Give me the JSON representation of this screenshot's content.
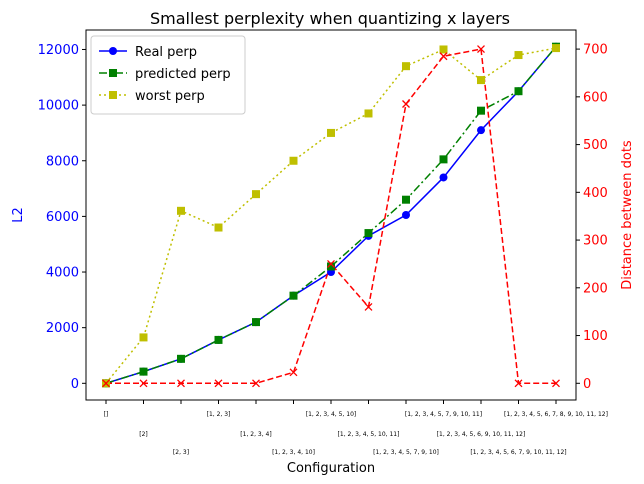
{
  "chart_data": {
    "type": "line",
    "title": "Smallest perplexity when quantizing x layers",
    "xlabel": "Configuration",
    "ylabel_left": "L2",
    "ylabel_right": "Distance between dots",
    "categories": [
      "[]",
      "[2]",
      "[2, 3]",
      "[1, 2, 3]",
      "[1, 2, 3, 4]",
      "[1, 2, 3, 4, 10]",
      "[1, 2, 3, 4, 5, 10]",
      "[1, 2, 3, 4, 5, 10, 11]",
      "[1, 2, 3, 4, 5, 7, 9, 10]",
      "[1, 2, 3, 4, 5, 7, 9, 10, 11]",
      "[1, 2, 3, 4, 5, 6, 9, 10, 11, 12]",
      "[1, 2, 3, 4, 5, 6, 7, 9, 10, 11, 12]",
      "[1, 2, 3, 4, 5, 6, 7, 8, 9, 10, 11, 12]"
    ],
    "ylim_left": [
      -600,
      12700
    ],
    "ylim_right": [
      -35,
      740
    ],
    "yticks_left": [
      0,
      2000,
      4000,
      6000,
      8000,
      10000,
      12000
    ],
    "yticks_right": [
      0,
      100,
      200,
      300,
      400,
      500,
      600,
      700
    ],
    "series": [
      {
        "name": "Real perp",
        "axis": "left",
        "color": "#0000ff",
        "style": "solid",
        "marker": "circle",
        "values": [
          0,
          420,
          880,
          1560,
          2200,
          3150,
          4000,
          5300,
          6050,
          7400,
          9100,
          10500,
          12100
        ]
      },
      {
        "name": "predicted perp",
        "axis": "left",
        "color": "#008000",
        "style": "dashdot",
        "marker": "square",
        "values": [
          0,
          420,
          880,
          1560,
          2200,
          3150,
          4200,
          5400,
          6600,
          8050,
          9800,
          10500,
          12100
        ]
      },
      {
        "name": "worst perp",
        "axis": "left",
        "color": "#bfbf00",
        "style": "dotted",
        "marker": "square",
        "values": [
          0,
          1650,
          6200,
          5600,
          6800,
          8000,
          9000,
          9700,
          11400,
          12000,
          10900,
          11800,
          12050
        ]
      },
      {
        "name": "",
        "axis": "right",
        "color": "#ff0000",
        "style": "dashed",
        "marker": "x",
        "values": [
          0,
          0,
          0,
          0,
          0,
          23,
          250,
          160,
          585,
          685,
          700,
          0,
          0
        ]
      }
    ],
    "legend": "top-left",
    "grid": false
  }
}
